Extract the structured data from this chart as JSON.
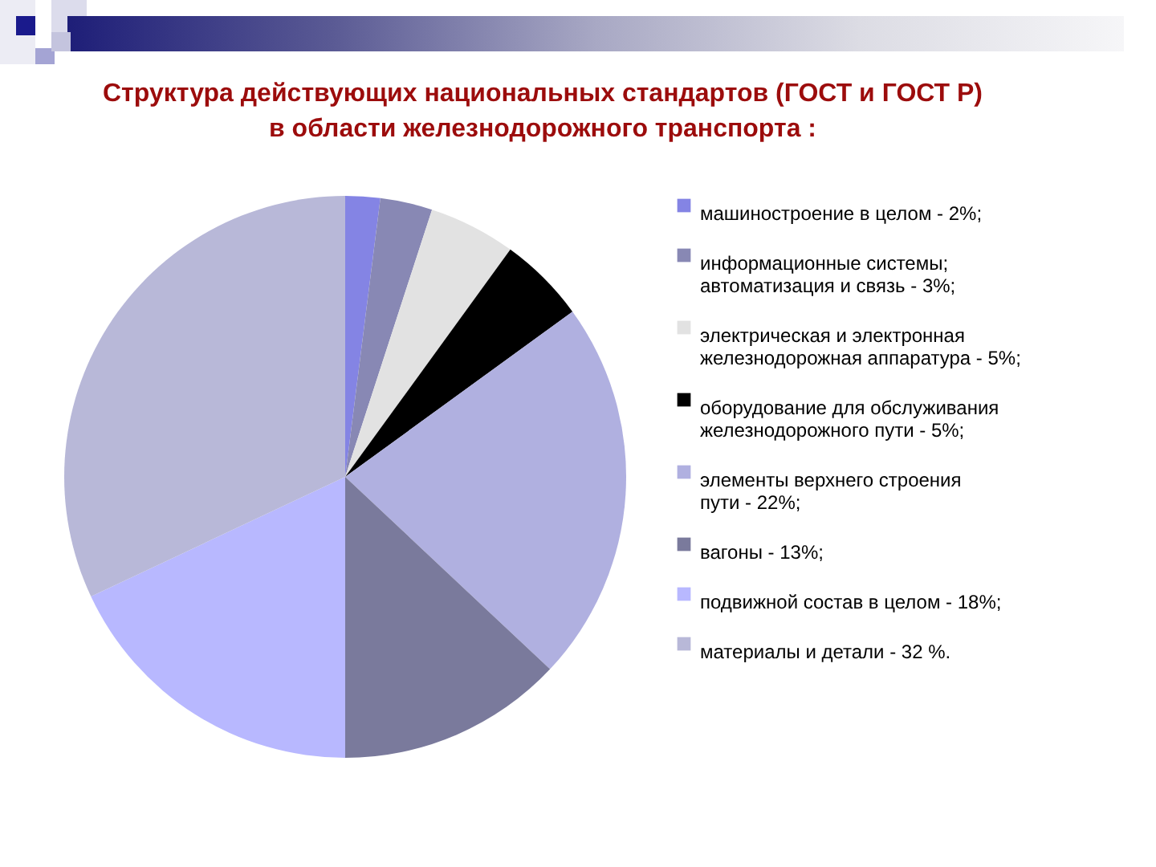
{
  "chart_data": {
    "type": "pie",
    "title": "Структура действующих национальных стандартов (ГОСТ и ГОСТ Р)\nв области железнодорожного транспорта :",
    "categories": [
      "машиностроение в целом",
      "информационные системы; автоматизация и связь",
      "электрическая и электронная железнодорожная аппаратура",
      "оборудование для обслуживания железнодорожного пути",
      "элементы верхнего строения пути",
      "вагоны",
      "подвижной состав в целом",
      "материалы и детали"
    ],
    "values": [
      2,
      3,
      5,
      5,
      22,
      13,
      18,
      32
    ],
    "value_labels": [
      "2%;",
      "3%;",
      "5%;",
      "5%;",
      "22%;",
      "13%;",
      "18%;",
      "32 %."
    ],
    "colors": [
      "#8484e4",
      "#8888b4",
      "#e2e2e2",
      "#000000",
      "#b0b0e0",
      "#7a7a9c",
      "#b8b8ff",
      "#b8b8d8"
    ],
    "legend": "right"
  }
}
